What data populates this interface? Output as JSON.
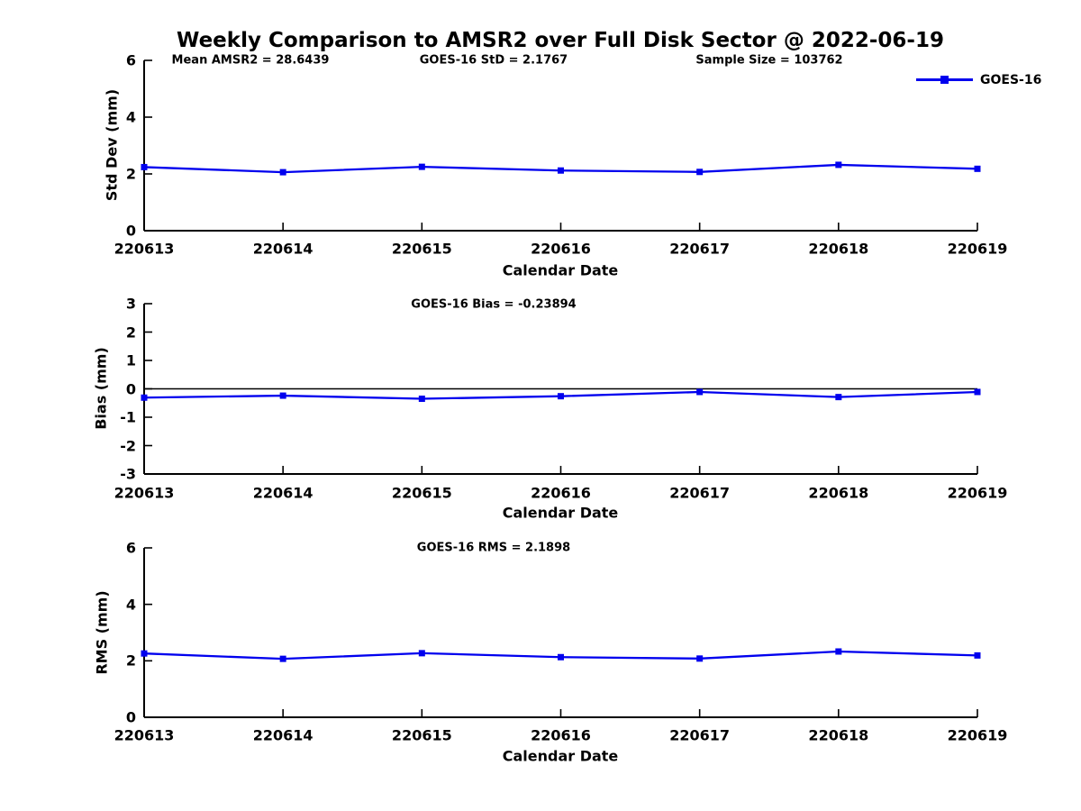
{
  "figure": {
    "title": "Weekly Comparison to AMSR2 over Full Disk Sector @ 2022-06-19",
    "background_color": "#ffffff",
    "axis_color": "#000000",
    "series_color": "#0000ee",
    "legend": {
      "label": "GOES-16",
      "marker": "filled-square"
    }
  },
  "chart_data": [
    {
      "type": "line",
      "name": "std-dev-panel",
      "categories": [
        "220613",
        "220614",
        "220615",
        "220616",
        "220617",
        "220618",
        "220619"
      ],
      "series": [
        {
          "name": "GOES-16",
          "values": [
            2.24,
            2.06,
            2.25,
            2.12,
            2.07,
            2.32,
            2.18
          ]
        }
      ],
      "annotations": [
        "Mean AMSR2 = 28.6439",
        "GOES-16 StD = 2.1767",
        "Sample Size = 103762"
      ],
      "xlabel": "Calendar Date",
      "ylabel": "Std Dev (mm)",
      "ylim": [
        0,
        6
      ],
      "yticks": [
        "0",
        "2",
        "4",
        "6"
      ],
      "ytick_values": [
        0,
        2,
        4,
        6
      ],
      "grid": "off",
      "legend_position": "upper-right-outside-plot"
    },
    {
      "type": "line",
      "name": "bias-panel",
      "categories": [
        "220613",
        "220614",
        "220615",
        "220616",
        "220617",
        "220618",
        "220619"
      ],
      "series": [
        {
          "name": "GOES-16",
          "values": [
            -0.31,
            -0.24,
            -0.35,
            -0.26,
            -0.11,
            -0.29,
            -0.11
          ]
        }
      ],
      "annotations": [
        "GOES-16 Bias  = -0.23894"
      ],
      "xlabel": "Calendar Date",
      "ylabel": "Bias (mm)",
      "ylim": [
        -3,
        3
      ],
      "yticks": [
        "-3",
        "-2",
        "-1",
        "0",
        "1",
        "2",
        "3"
      ],
      "ytick_values": [
        -3,
        -2,
        -1,
        0,
        1,
        2,
        3
      ],
      "reference_line_y": 0,
      "grid": "off"
    },
    {
      "type": "line",
      "name": "rms-panel",
      "categories": [
        "220613",
        "220614",
        "220615",
        "220616",
        "220617",
        "220618",
        "220619"
      ],
      "series": [
        {
          "name": "GOES-16",
          "values": [
            2.26,
            2.07,
            2.27,
            2.13,
            2.08,
            2.33,
            2.19
          ]
        }
      ],
      "annotations": [
        "GOES-16 RMS = 2.1898"
      ],
      "xlabel": "Calendar Date",
      "ylabel": "RMS (mm)",
      "ylim": [
        0,
        6
      ],
      "yticks": [
        "0",
        "2",
        "4",
        "6"
      ],
      "ytick_values": [
        0,
        2,
        4,
        6
      ],
      "grid": "off"
    }
  ]
}
